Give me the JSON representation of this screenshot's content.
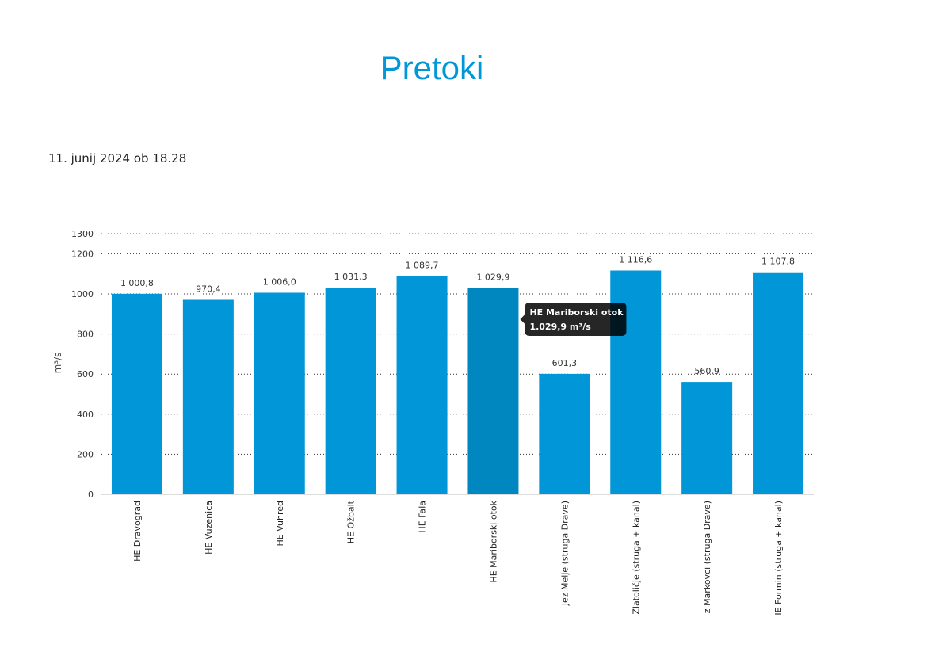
{
  "title": "Pretoki",
  "timestamp": "11. junij 2024 ob 18.28",
  "colors": {
    "bar": "#0096d7",
    "bar_hover": "#0087c0",
    "title": "#0097d9"
  },
  "tooltip": {
    "name": "HE Mariborski otok",
    "value": "1.029,9 m³/s"
  },
  "chart_data": {
    "type": "bar",
    "ylabel": "m³/s",
    "ylim": [
      0,
      1300
    ],
    "yticks": [
      0,
      200,
      400,
      600,
      800,
      1000,
      1200,
      1300
    ],
    "grid": true,
    "categories": [
      "HE Dravograd",
      "HE Vuzenica",
      "HE Vuhred",
      "HE Ožbalt",
      "HE Fala",
      "HE Mariborski otok",
      "Jez Melje (struga Drave)",
      "Zlatoličje (struga + kanal)",
      "z Markovci (struga Drave)",
      "IE Formin (struga + kanal)"
    ],
    "values": [
      1000.8,
      970.4,
      1006.0,
      1031.3,
      1089.7,
      1029.9,
      601.3,
      1116.6,
      560.9,
      1107.8
    ],
    "labels": [
      "1 000,8",
      "970,4",
      "1 006,0",
      "1 031,3",
      "1 089,7",
      "1 029,9",
      "601,3",
      "1 116,6",
      "560,9",
      "1 107,8"
    ],
    "highlighted_index": 5
  }
}
